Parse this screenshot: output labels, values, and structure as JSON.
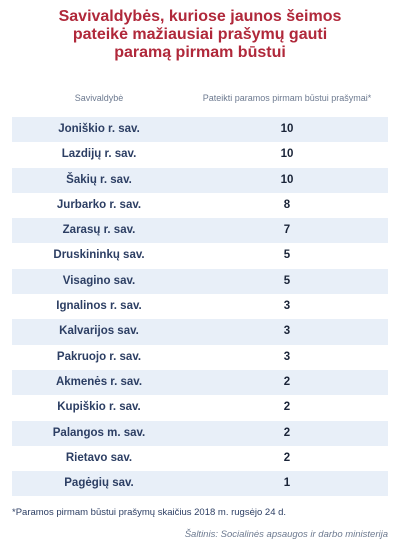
{
  "chart_data": {
    "type": "table",
    "title": "Savivaldybės, kuriose jaunos šeimos pateikė mažiausiai prašymų gauti paramą pirmam būstui",
    "title_lines": [
      "Savivaldybės, kuriose jaunos šeimos",
      "pateikė mažiausiai prašymų gauti",
      "paramą pirmam būstui"
    ],
    "columns": [
      "Savivaldybė",
      "Pateikti paramos pirmam būstui prašymai*"
    ],
    "rows": [
      {
        "name": "Joniškio r. sav.",
        "value": 10
      },
      {
        "name": "Lazdijų r. sav.",
        "value": 10
      },
      {
        "name": "Šakių r. sav.",
        "value": 10
      },
      {
        "name": "Jurbarko r. sav.",
        "value": 8
      },
      {
        "name": "Zarasų r. sav.",
        "value": 7
      },
      {
        "name": "Druskininkų sav.",
        "value": 5
      },
      {
        "name": "Visagino sav.",
        "value": 5
      },
      {
        "name": "Ignalinos r. sav.",
        "value": 3
      },
      {
        "name": "Kalvarijos sav.",
        "value": 3
      },
      {
        "name": "Pakruojo r. sav.",
        "value": 3
      },
      {
        "name": "Akmenės r. sav.",
        "value": 2
      },
      {
        "name": "Kupiškio r. sav.",
        "value": 2
      },
      {
        "name": "Palangos m. sav.",
        "value": 2
      },
      {
        "name": "Rietavo sav.",
        "value": 2
      },
      {
        "name": "Pagėgių sav.",
        "value": 1
      }
    ],
    "footnote": "*Paramos pirmam būstui prašymų skaičius 2018 m. rugsėjo 24 d.",
    "source": "Šaltinis: Socialinės apsaugos ir darbo ministerija",
    "colors": {
      "title": "#b0283a",
      "stripe": "#e8eff8",
      "text": "#2c3e63"
    }
  }
}
